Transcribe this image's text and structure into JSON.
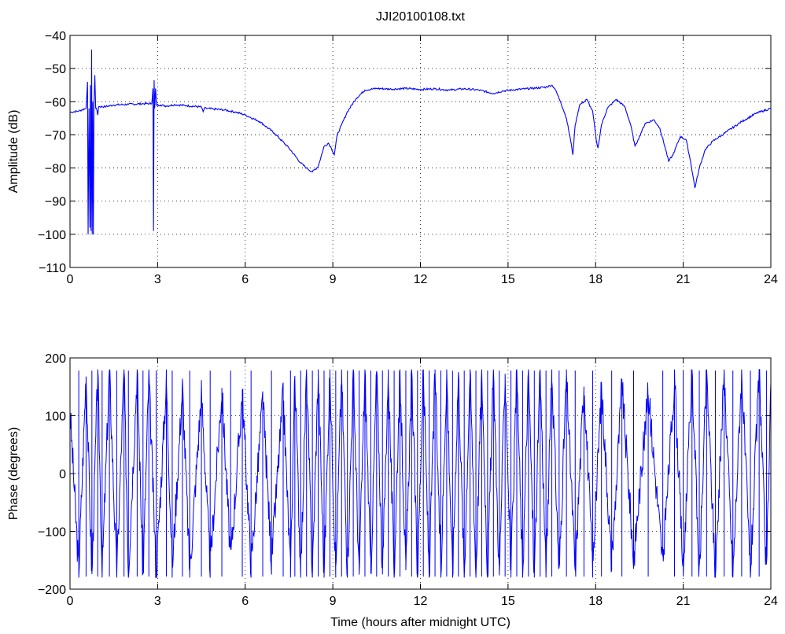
{
  "figure": {
    "title": "JJI20100108.txt",
    "line_color": "#0000ff"
  },
  "chart_data": [
    {
      "type": "line",
      "title": "JJI20100108.txt",
      "xlabel": "",
      "ylabel": "Amplitude (dB)",
      "xlim": [
        0,
        24
      ],
      "ylim": [
        -110,
        -40
      ],
      "xticks": [
        0,
        3,
        6,
        9,
        12,
        15,
        18,
        21,
        24
      ],
      "yticks": [
        -110,
        -100,
        -90,
        -80,
        -70,
        -60,
        -50,
        -40
      ],
      "grid": true,
      "series": [
        {
          "points": [
            [
              0,
              -63.2
            ],
            [
              0.3,
              -62.8
            ],
            [
              0.55,
              -62.0
            ],
            [
              0.6,
              -54
            ],
            [
              0.62,
              -100
            ],
            [
              0.65,
              -62
            ],
            [
              0.68,
              -98
            ],
            [
              0.7,
              -55
            ],
            [
              0.72,
              -99
            ],
            [
              0.74,
              -44.3
            ],
            [
              0.76,
              -100
            ],
            [
              0.78,
              -60
            ],
            [
              0.8,
              -100
            ],
            [
              0.82,
              -61
            ],
            [
              0.85,
              -52
            ],
            [
              0.88,
              -62
            ],
            [
              0.92,
              -62.5
            ],
            [
              0.95,
              -64
            ],
            [
              0.98,
              -61.5
            ],
            [
              1.2,
              -61.5
            ],
            [
              1.5,
              -61.0
            ],
            [
              2.0,
              -60.8
            ],
            [
              2.5,
              -60.6
            ],
            [
              2.8,
              -60.6
            ],
            [
              2.84,
              -56
            ],
            [
              2.86,
              -99
            ],
            [
              2.88,
              -53.5
            ],
            [
              2.9,
              -62
            ],
            [
              2.93,
              -56
            ],
            [
              2.96,
              -61
            ],
            [
              3.1,
              -61
            ],
            [
              3.3,
              -61.3
            ],
            [
              3.6,
              -60.9
            ],
            [
              4.0,
              -61.2
            ],
            [
              4.5,
              -61.6
            ],
            [
              4.56,
              -63
            ],
            [
              4.6,
              -62.0
            ],
            [
              4.9,
              -62.2
            ],
            [
              5.3,
              -62.5
            ],
            [
              5.7,
              -63.2
            ],
            [
              6.0,
              -64.0
            ],
            [
              6.5,
              -66.0
            ],
            [
              7.0,
              -69.5
            ],
            [
              7.5,
              -74.0
            ],
            [
              7.9,
              -78.5
            ],
            [
              8.1,
              -80.0
            ],
            [
              8.3,
              -81.2
            ],
            [
              8.5,
              -79.5
            ],
            [
              8.7,
              -73.5
            ],
            [
              8.85,
              -72.5
            ],
            [
              8.95,
              -74
            ],
            [
              9.05,
              -76.0
            ],
            [
              9.15,
              -70.0
            ],
            [
              9.3,
              -67.0
            ],
            [
              9.5,
              -63.0
            ],
            [
              9.8,
              -59.0
            ],
            [
              10.1,
              -56.5
            ],
            [
              10.5,
              -56.0
            ],
            [
              11.0,
              -56.2
            ],
            [
              11.5,
              -56.0
            ],
            [
              12.0,
              -56.3
            ],
            [
              12.5,
              -56.1
            ],
            [
              13.0,
              -56.5
            ],
            [
              13.5,
              -56.1
            ],
            [
              14.0,
              -56.5
            ],
            [
              14.5,
              -57.5
            ],
            [
              14.8,
              -56.8
            ],
            [
              15.2,
              -56.4
            ],
            [
              15.8,
              -56.0
            ],
            [
              16.3,
              -55.6
            ],
            [
              16.5,
              -55.0
            ],
            [
              16.6,
              -56.0
            ],
            [
              16.8,
              -60.0
            ],
            [
              17.0,
              -65.0
            ],
            [
              17.15,
              -72.0
            ],
            [
              17.22,
              -76.0
            ],
            [
              17.3,
              -67.0
            ],
            [
              17.45,
              -61.0
            ],
            [
              17.7,
              -59.3
            ],
            [
              17.9,
              -63.0
            ],
            [
              18.02,
              -71.5
            ],
            [
              18.08,
              -74.0
            ],
            [
              18.2,
              -67.0
            ],
            [
              18.4,
              -62.0
            ],
            [
              18.7,
              -59.3
            ],
            [
              19.0,
              -61.5
            ],
            [
              19.2,
              -67.0
            ],
            [
              19.35,
              -73.5
            ],
            [
              19.45,
              -71.5
            ],
            [
              19.7,
              -66.5
            ],
            [
              20.0,
              -65.5
            ],
            [
              20.2,
              -68.0
            ],
            [
              20.4,
              -74.5
            ],
            [
              20.5,
              -78.0
            ],
            [
              20.65,
              -76.0
            ],
            [
              20.9,
              -70.5
            ],
            [
              21.1,
              -71.5
            ],
            [
              21.25,
              -78.0
            ],
            [
              21.4,
              -86.0
            ],
            [
              21.55,
              -80.0
            ],
            [
              21.75,
              -74.5
            ],
            [
              22.0,
              -72.0
            ],
            [
              22.5,
              -69.0
            ],
            [
              23.0,
              -66.0
            ],
            [
              23.5,
              -63.5
            ],
            [
              24.0,
              -62.0
            ]
          ]
        }
      ]
    },
    {
      "type": "line",
      "title": "",
      "xlabel": "Time (hours after midnight UTC)",
      "ylabel": "Phase (degrees)",
      "xlim": [
        0,
        24
      ],
      "ylim": [
        -200,
        200
      ],
      "xticks": [
        0,
        3,
        6,
        9,
        12,
        15,
        18,
        21,
        24
      ],
      "yticks": [
        -200,
        -100,
        0,
        100,
        200
      ],
      "grid": true,
      "series": [
        {
          "phase_wrap": [
            -180,
            180
          ],
          "phase_segments": [
            [
              0,
              110
            ],
            [
              0.3,
              -170
            ],
            [
              0.55,
              175
            ],
            [
              0.75,
              -178
            ],
            [
              0.95,
              178
            ],
            [
              1.1,
              -175
            ],
            [
              1.35,
              178
            ],
            [
              1.6,
              -178
            ],
            [
              1.85,
              175
            ],
            [
              2.0,
              -170
            ],
            [
              2.3,
              178
            ],
            [
              2.5,
              -178
            ],
            [
              2.7,
              170
            ],
            [
              2.95,
              -175
            ],
            [
              3.3,
              160
            ],
            [
              3.5,
              -165
            ],
            [
              3.85,
              150
            ],
            [
              4.1,
              -170
            ],
            [
              4.5,
              140
            ],
            [
              4.8,
              -160
            ],
            [
              5.2,
              145
            ],
            [
              5.5,
              -150
            ],
            [
              5.9,
              140
            ],
            [
              6.2,
              -160
            ],
            [
              6.6,
              130
            ],
            [
              6.9,
              -150
            ],
            [
              7.3,
              135
            ],
            [
              7.55,
              -170
            ],
            [
              7.7,
              175
            ],
            [
              7.9,
              -178
            ],
            [
              8.1,
              178
            ],
            [
              8.3,
              -178
            ],
            [
              8.5,
              176
            ],
            [
              8.7,
              -175
            ],
            [
              8.9,
              178
            ],
            [
              9.1,
              -178
            ],
            [
              9.3,
              176
            ],
            [
              9.5,
              -177
            ],
            [
              9.7,
              178
            ],
            [
              9.9,
              -178
            ],
            [
              10.1,
              177
            ],
            [
              10.3,
              -176
            ],
            [
              10.5,
              178
            ],
            [
              10.7,
              -177
            ],
            [
              10.9,
              178
            ],
            [
              11.1,
              -178
            ],
            [
              11.3,
              176
            ],
            [
              11.5,
              -178
            ],
            [
              11.7,
              178
            ],
            [
              11.9,
              -177
            ],
            [
              12.1,
              178
            ],
            [
              12.3,
              -178
            ],
            [
              12.5,
              177
            ],
            [
              12.7,
              -177
            ],
            [
              12.9,
              178
            ],
            [
              13.1,
              -178
            ],
            [
              13.3,
              176
            ],
            [
              13.5,
              -178
            ],
            [
              13.7,
              178
            ],
            [
              13.9,
              -176
            ],
            [
              14.1,
              177
            ],
            [
              14.3,
              -178
            ],
            [
              14.5,
              178
            ],
            [
              14.7,
              -178
            ],
            [
              14.9,
              177
            ],
            [
              15.1,
              -177
            ],
            [
              15.3,
              178
            ],
            [
              15.5,
              -178
            ],
            [
              15.7,
              176
            ],
            [
              15.9,
              -178
            ],
            [
              16.1,
              178
            ],
            [
              16.3,
              -177
            ],
            [
              16.5,
              178
            ],
            [
              16.75,
              -175
            ],
            [
              17.0,
              170
            ],
            [
              17.3,
              -170
            ],
            [
              17.6,
              160
            ],
            [
              17.9,
              -165
            ],
            [
              18.2,
              150
            ],
            [
              18.55,
              -160
            ],
            [
              18.9,
              155
            ],
            [
              19.3,
              -150
            ],
            [
              19.8,
              140
            ],
            [
              20.3,
              -155
            ],
            [
              20.7,
              160
            ],
            [
              21.0,
              -170
            ],
            [
              21.3,
              175
            ],
            [
              21.55,
              -178
            ],
            [
              21.8,
              176
            ],
            [
              22.1,
              -175
            ],
            [
              22.4,
              175
            ],
            [
              22.7,
              -178
            ],
            [
              23.0,
              177
            ],
            [
              23.3,
              -176
            ],
            [
              23.6,
              178
            ],
            [
              23.85,
              -178
            ],
            [
              24.0,
              170
            ]
          ]
        }
      ]
    }
  ]
}
